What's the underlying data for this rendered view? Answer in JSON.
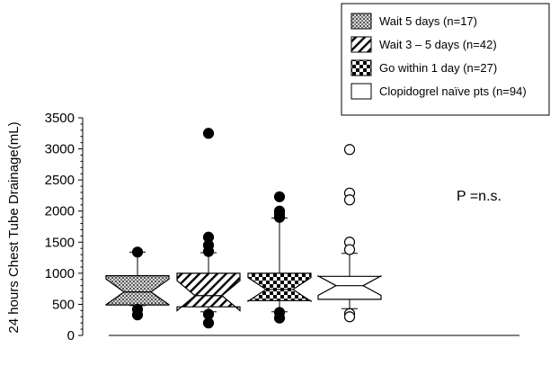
{
  "chart_data": {
    "type": "box",
    "ylabel": "24 hours Chest Tube Drainage(mL)",
    "ylim": [
      0,
      3500
    ],
    "yticks": [
      0,
      500,
      1000,
      1500,
      2000,
      2500,
      3000,
      3500
    ],
    "grid": false,
    "legend_position": "top-right",
    "annotation": "P =n.s.",
    "series": [
      {
        "name": "Wait 5 days (n=17)",
        "pattern": "dense-dots",
        "box": {
          "whisker_low": 480,
          "q1": 490,
          "median": 700,
          "q3": 960,
          "whisker_high": 1340
        },
        "outliers": [
          {
            "value": 1340,
            "filled": true
          },
          {
            "value": 420,
            "filled": true
          },
          {
            "value": 330,
            "filled": true
          }
        ]
      },
      {
        "name": "Wait 3 – 5 days (n=42)",
        "pattern": "diagonal-hatch",
        "box": {
          "whisker_low": 380,
          "q1": 460,
          "median": 640,
          "q3": 1000,
          "whisker_high": 1330
        },
        "outliers": [
          {
            "value": 3250,
            "filled": true
          },
          {
            "value": 1580,
            "filled": true
          },
          {
            "value": 1450,
            "filled": true
          },
          {
            "value": 1350,
            "filled": true
          },
          {
            "value": 340,
            "filled": true
          },
          {
            "value": 200,
            "filled": true
          }
        ]
      },
      {
        "name": "Go within 1 day (n=27)",
        "pattern": "checker",
        "box": {
          "whisker_low": 380,
          "q1": 560,
          "median": 740,
          "q3": 1000,
          "whisker_high": 1890
        },
        "outliers": [
          {
            "value": 2230,
            "filled": true
          },
          {
            "value": 2000,
            "filled": true
          },
          {
            "value": 1950,
            "filled": true
          },
          {
            "value": 1900,
            "filled": true
          },
          {
            "value": 370,
            "filled": true
          },
          {
            "value": 280,
            "filled": true
          }
        ]
      },
      {
        "name": "Clopidogrel naïve pts (n=94)",
        "pattern": "none",
        "box": {
          "whisker_low": 430,
          "q1": 580,
          "median": 800,
          "q3": 950,
          "whisker_high": 1320
        },
        "outliers": [
          {
            "value": 2990,
            "filled": false
          },
          {
            "value": 2290,
            "filled": false
          },
          {
            "value": 2180,
            "filled": false
          },
          {
            "value": 1500,
            "filled": false
          },
          {
            "value": 1380,
            "filled": false
          },
          {
            "value": 350,
            "filled": false
          },
          {
            "value": 300,
            "filled": false
          }
        ]
      }
    ]
  }
}
